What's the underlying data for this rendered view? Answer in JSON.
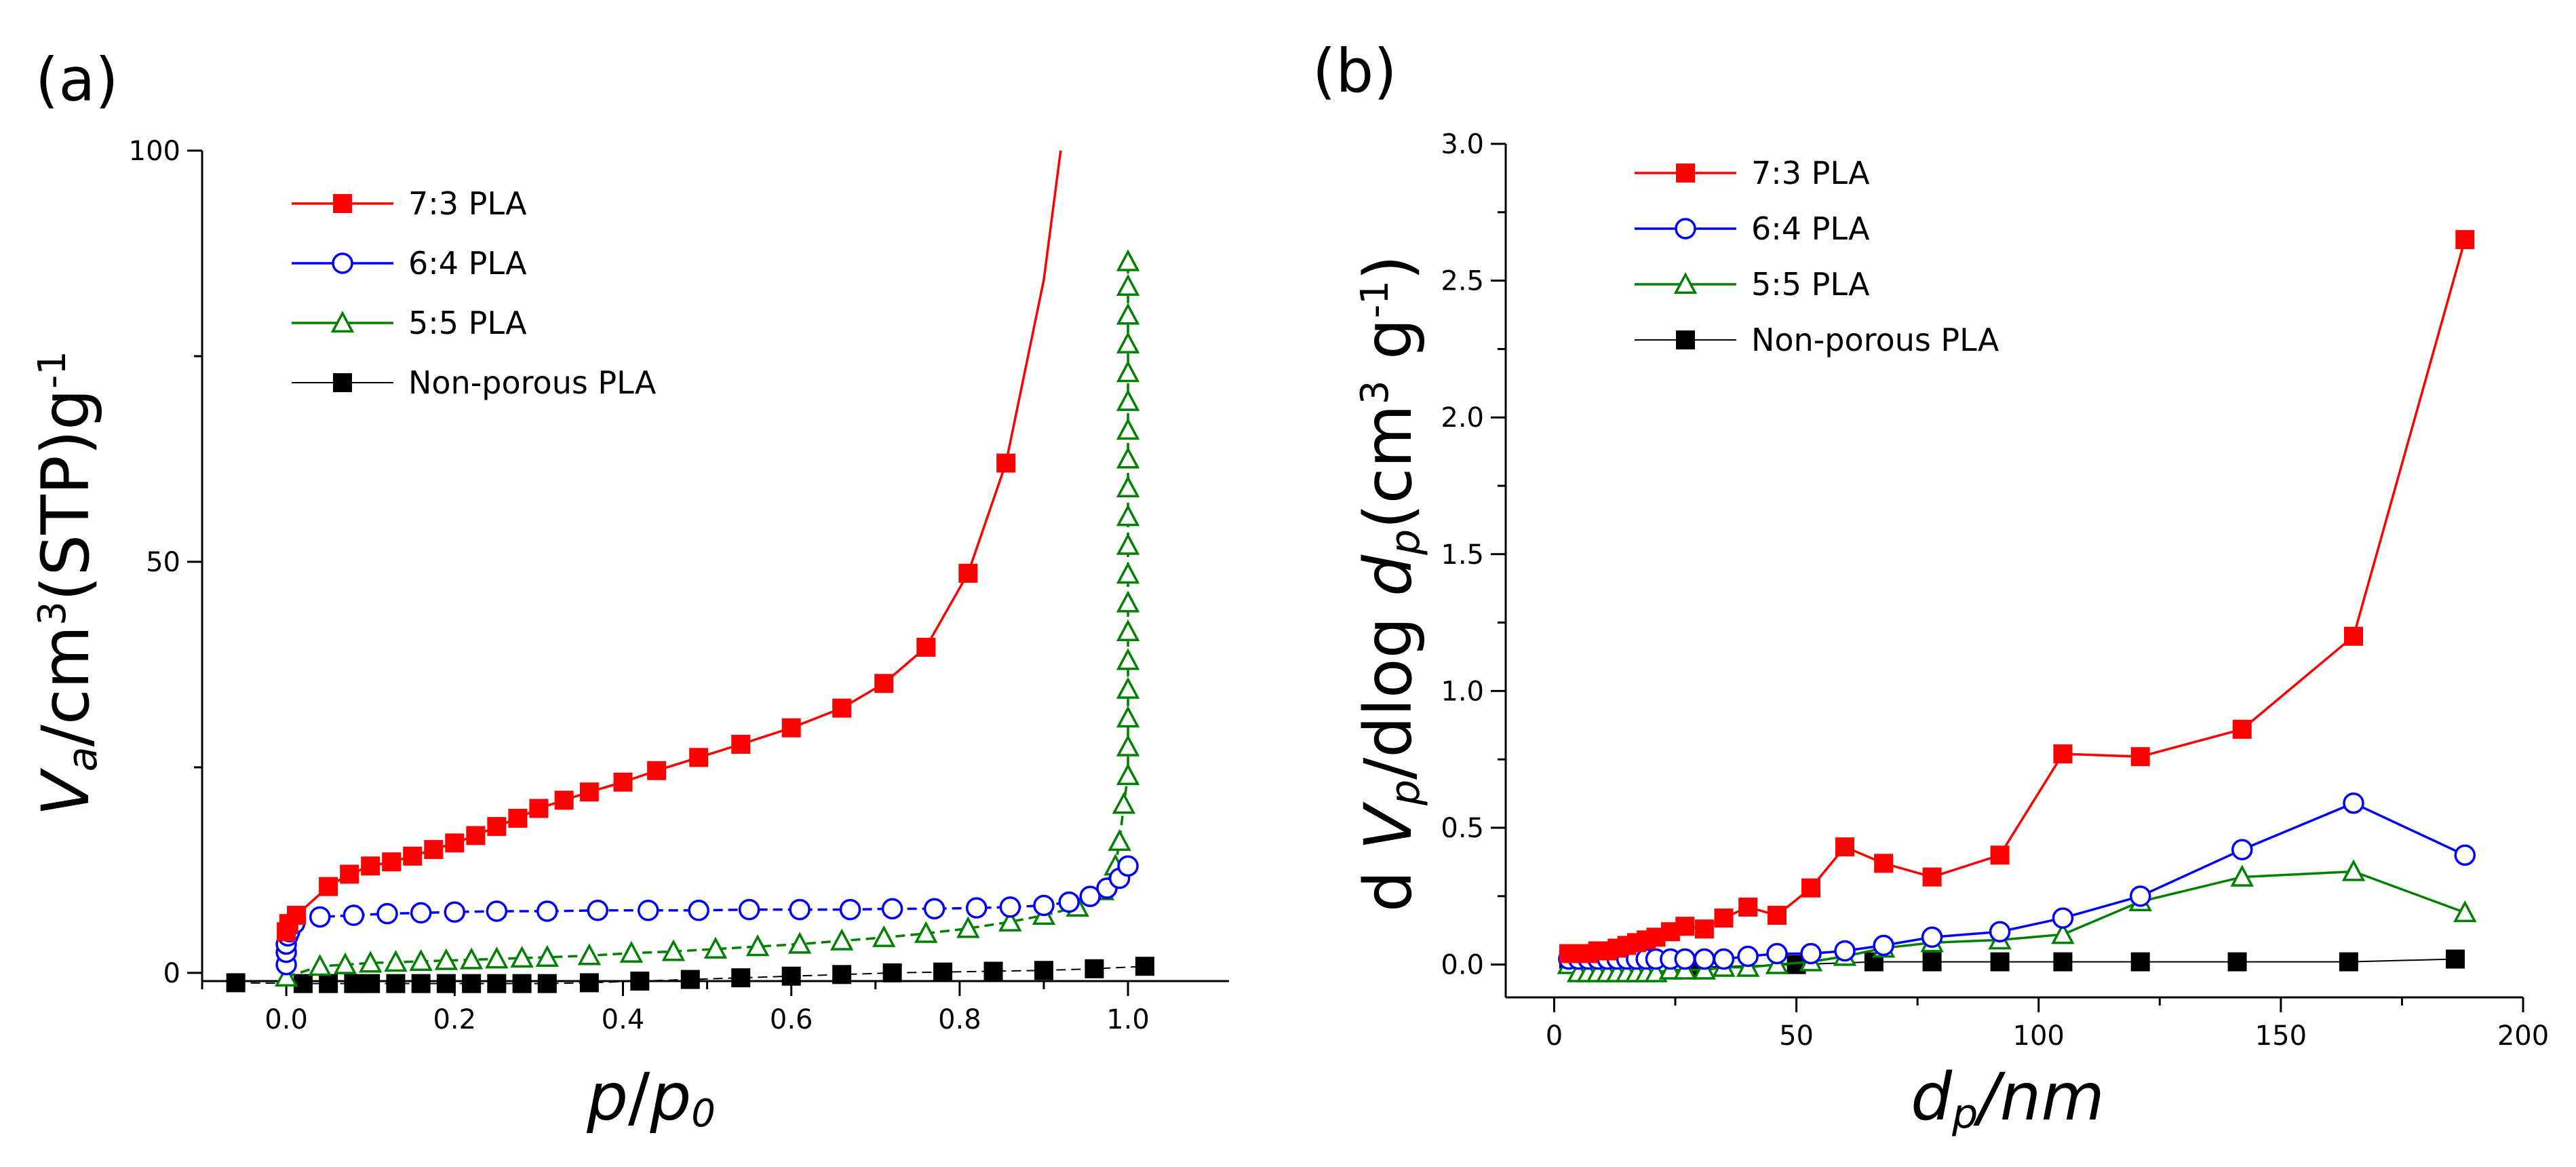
{
  "chart_data": [
    {
      "panel": "(a)",
      "type": "line",
      "title": "",
      "xlabel_parts": [
        "p",
        "/",
        "p",
        "0"
      ],
      "ylabel_parts": [
        "V",
        "a",
        "/cm",
        "3",
        "(STP)g",
        "-1"
      ],
      "xlim": [
        -0.1,
        1.12
      ],
      "ylim": [
        -1,
        100
      ],
      "xticks": [
        0.0,
        0.2,
        0.4,
        0.6,
        0.8,
        1.0
      ],
      "xtick_labels": [
        "0.0",
        "0.2",
        "0.4",
        "0.6",
        "0.8",
        "1.0"
      ],
      "yticks": [
        0,
        50,
        100
      ],
      "ytick_labels": [
        "0",
        "50",
        "100"
      ],
      "legend_position": "top-left",
      "series": [
        {
          "name": "7:3 PLA",
          "color": "#ff0000",
          "marker": "square-filled",
          "dashed": false,
          "x": [
            0.0,
            0.003,
            0.012,
            0.05,
            0.075,
            0.1,
            0.125,
            0.15,
            0.175,
            0.2,
            0.225,
            0.25,
            0.275,
            0.3,
            0.33,
            0.36,
            0.4,
            0.44,
            0.49,
            0.54,
            0.6,
            0.66,
            0.71,
            0.76,
            0.81,
            0.855,
            0.9,
            0.92
          ],
          "y": [
            5,
            6,
            7,
            10.5,
            12,
            13,
            13.5,
            14.2,
            15,
            15.8,
            16.7,
            17.8,
            18.8,
            20,
            21,
            22,
            23.2,
            24.6,
            26.2,
            27.8,
            29.8,
            32.2,
            35.2,
            39.6,
            48.6,
            62,
            84.3,
            100
          ],
          "marker_count": 26
        },
        {
          "name": "6:4 PLA",
          "color": "#0000ff",
          "marker": "circle-open",
          "dashed": true,
          "x": [
            0.0,
            0.0,
            0.0,
            0.002,
            0.004,
            0.01,
            0.04,
            0.08,
            0.12,
            0.16,
            0.2,
            0.25,
            0.31,
            0.37,
            0.43,
            0.49,
            0.55,
            0.61,
            0.67,
            0.72,
            0.77,
            0.82,
            0.86,
            0.9,
            0.93,
            0.955,
            0.975,
            0.99,
            1.0
          ],
          "y": [
            1,
            2.5,
            3.5,
            4.5,
            5,
            6,
            6.8,
            7,
            7.2,
            7.3,
            7.4,
            7.5,
            7.5,
            7.6,
            7.6,
            7.6,
            7.7,
            7.7,
            7.7,
            7.8,
            7.8,
            7.9,
            8.0,
            8.2,
            8.6,
            9.3,
            10.3,
            11.5,
            13
          ]
        },
        {
          "name": "5:5 PLA",
          "color": "#008000",
          "marker": "triangle-open",
          "dashed": true,
          "x": [
            0.0,
            0.04,
            0.07,
            0.1,
            0.13,
            0.16,
            0.19,
            0.22,
            0.25,
            0.28,
            0.31,
            0.36,
            0.41,
            0.46,
            0.51,
            0.56,
            0.61,
            0.66,
            0.71,
            0.76,
            0.81,
            0.86,
            0.9,
            0.94,
            0.97,
            0.985,
            0.99,
            0.995,
            1.0,
            1.0,
            1.0,
            1.0,
            1.0,
            1.0,
            1.0,
            1.0,
            1.0,
            1.0,
            1.0,
            1.0,
            1.0,
            1.0,
            1.0,
            1.0,
            1.0,
            1.0,
            1.0
          ],
          "y": [
            -0.5,
            0.8,
            1.0,
            1.2,
            1.3,
            1.4,
            1.5,
            1.6,
            1.7,
            1.8,
            1.9,
            2.1,
            2.4,
            2.6,
            2.9,
            3.2,
            3.5,
            3.9,
            4.3,
            4.8,
            5.4,
            6.2,
            7.0,
            8.0,
            10,
            13,
            16,
            20.5,
            24,
            27.5,
            31,
            34.5,
            38,
            41.5,
            45,
            48.5,
            52,
            55.5,
            59,
            62.5,
            66,
            69.5,
            73,
            76.5,
            80,
            83.5,
            86.5
          ]
        },
        {
          "name": "Non-porous PLA",
          "color": "#000000",
          "marker": "square-filled",
          "dashed": true,
          "x": [
            -0.06,
            0.02,
            0.05,
            0.08,
            0.1,
            0.13,
            0.16,
            0.19,
            0.22,
            0.25,
            0.28,
            0.31,
            0.36,
            0.42,
            0.48,
            0.54,
            0.6,
            0.66,
            0.72,
            0.78,
            0.84,
            0.9,
            0.96,
            1.02
          ],
          "y": [
            -1.2,
            -1.3,
            -1.3,
            -1.3,
            -1.3,
            -1.3,
            -1.3,
            -1.3,
            -1.3,
            -1.3,
            -1.3,
            -1.3,
            -1.2,
            -1.0,
            -0.8,
            -0.6,
            -0.4,
            -0.2,
            0.0,
            0.1,
            0.2,
            0.3,
            0.5,
            0.8
          ]
        }
      ]
    },
    {
      "panel": "(b)",
      "type": "line",
      "title": "",
      "xlabel_parts": [
        "d",
        "p",
        "/nm"
      ],
      "ylabel_parts": [
        "d ",
        "V",
        "p",
        "/dlog ",
        "d",
        "p",
        "(cm",
        "3",
        " g",
        "-1",
        ")"
      ],
      "xlim": [
        -10,
        200
      ],
      "ylim": [
        -0.12,
        3.0
      ],
      "xticks": [
        0,
        50,
        100,
        150,
        200
      ],
      "xtick_labels": [
        "0",
        "50",
        "100",
        "150",
        "200"
      ],
      "yticks": [
        0.0,
        0.5,
        1.0,
        1.5,
        2.0,
        2.5,
        3.0
      ],
      "ytick_labels": [
        "0.0",
        "0.5",
        "1.0",
        "1.5",
        "2.0",
        "2.5",
        "3.0"
      ],
      "legend_position": "top-left",
      "series": [
        {
          "name": "7:3 PLA",
          "color": "#ff0000",
          "marker": "square-filled",
          "dashed": false,
          "x": [
            3,
            5,
            7,
            9,
            11,
            13,
            15,
            17,
            19,
            21,
            24,
            27,
            31,
            35,
            40,
            46,
            53,
            60,
            68,
            78,
            92,
            105,
            121,
            142,
            165,
            188
          ],
          "y": [
            0.04,
            0.04,
            0.04,
            0.05,
            0.05,
            0.06,
            0.07,
            0.08,
            0.09,
            0.1,
            0.12,
            0.14,
            0.13,
            0.17,
            0.21,
            0.18,
            0.28,
            0.43,
            0.37,
            0.32,
            0.4,
            0.77,
            0.76,
            0.86,
            1.2,
            2.65
          ]
        },
        {
          "name": "6:4 PLA",
          "color": "#0000ff",
          "marker": "circle-open",
          "dashed": false,
          "x": [
            3,
            5,
            7,
            9,
            11,
            13,
            15,
            17,
            19,
            21,
            24,
            27,
            31,
            35,
            40,
            46,
            53,
            60,
            68,
            78,
            92,
            105,
            121,
            142,
            165,
            188
          ],
          "y": [
            0.02,
            0.02,
            0.02,
            0.02,
            0.02,
            0.02,
            0.02,
            0.02,
            0.02,
            0.02,
            0.02,
            0.02,
            0.02,
            0.02,
            0.03,
            0.04,
            0.04,
            0.05,
            0.07,
            0.1,
            0.12,
            0.17,
            0.25,
            0.42,
            0.59,
            0.4
          ]
        },
        {
          "name": "5:5 PLA",
          "color": "#008000",
          "marker": "triangle-open",
          "dashed": false,
          "x": [
            3,
            5,
            7,
            9,
            11,
            13,
            15,
            17,
            19,
            21,
            24,
            27,
            31,
            35,
            40,
            46,
            53,
            60,
            68,
            78,
            92,
            105,
            121,
            142,
            165,
            188
          ],
          "y": [
            0.0,
            -0.03,
            -0.03,
            -0.03,
            -0.03,
            -0.03,
            -0.03,
            -0.03,
            -0.03,
            -0.03,
            -0.02,
            -0.02,
            -0.02,
            -0.01,
            -0.01,
            0.0,
            0.01,
            0.03,
            0.06,
            0.08,
            0.09,
            0.11,
            0.23,
            0.32,
            0.34,
            0.19
          ]
        },
        {
          "name": "Non-porous PLA",
          "color": "#000000",
          "marker": "square-filled",
          "dashed": false,
          "x": [
            3,
            30,
            50,
            66,
            78,
            92,
            105,
            121,
            141,
            164,
            186
          ],
          "y": [
            0.02,
            -0.01,
            0.0,
            0.01,
            0.01,
            0.01,
            0.01,
            0.01,
            0.01,
            0.01,
            0.02
          ]
        }
      ]
    }
  ]
}
